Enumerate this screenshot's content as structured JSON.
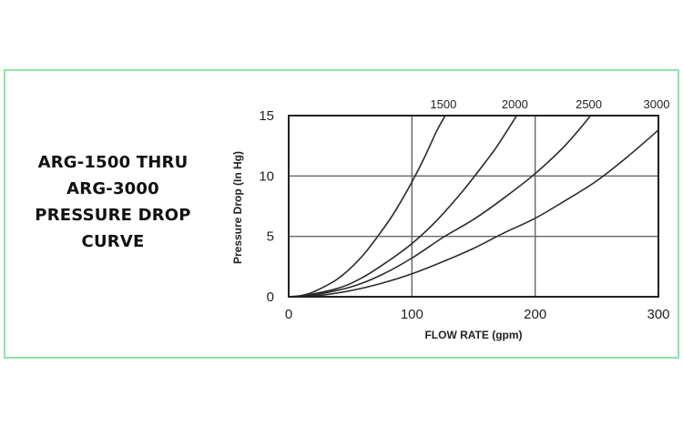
{
  "title_lines": [
    "ARG-1500 THRU",
    "ARG-3000",
    "PRESSURE DROP",
    "CURVE"
  ],
  "chart_data": {
    "type": "line",
    "title": "ARG-1500 THRU ARG-3000 PRESSURE DROP CURVE",
    "xlabel": "FLOW RATE (gpm)",
    "ylabel": "Pressure Drop (In Hg)",
    "xlim": [
      0,
      300
    ],
    "ylim": [
      0,
      15
    ],
    "xticks": [
      0,
      100,
      200,
      300
    ],
    "yticks": [
      0,
      5,
      10,
      15
    ],
    "grid": true,
    "series": [
      {
        "name": "1500",
        "x": [
          10,
          20,
          40,
          60,
          80,
          90,
          100,
          110,
          120,
          127
        ],
        "y": [
          0.1,
          0.4,
          1.5,
          3.4,
          6.1,
          7.7,
          9.5,
          11.5,
          13.7,
          15
        ]
      },
      {
        "name": "2000",
        "x": [
          10,
          40,
          60,
          80,
          100,
          120,
          140,
          160,
          170,
          185
        ],
        "y": [
          0.05,
          0.7,
          1.6,
          2.9,
          4.4,
          6.3,
          8.6,
          11.2,
          12.6,
          15
        ]
      },
      {
        "name": "2500",
        "x": [
          15,
          50,
          75,
          100,
          125,
          150,
          175,
          200,
          225,
          245
        ],
        "y": [
          0.05,
          0.8,
          1.8,
          3.2,
          4.9,
          6.4,
          8.2,
          10.2,
          12.6,
          15
        ]
      },
      {
        "name": "3000",
        "x": [
          20,
          50,
          75,
          100,
          125,
          150,
          175,
          200,
          225,
          250,
          275,
          300
        ],
        "y": [
          0.05,
          0.5,
          1.1,
          1.9,
          2.9,
          4.0,
          5.3,
          6.5,
          8.0,
          9.6,
          11.6,
          13.8
        ]
      }
    ]
  }
}
